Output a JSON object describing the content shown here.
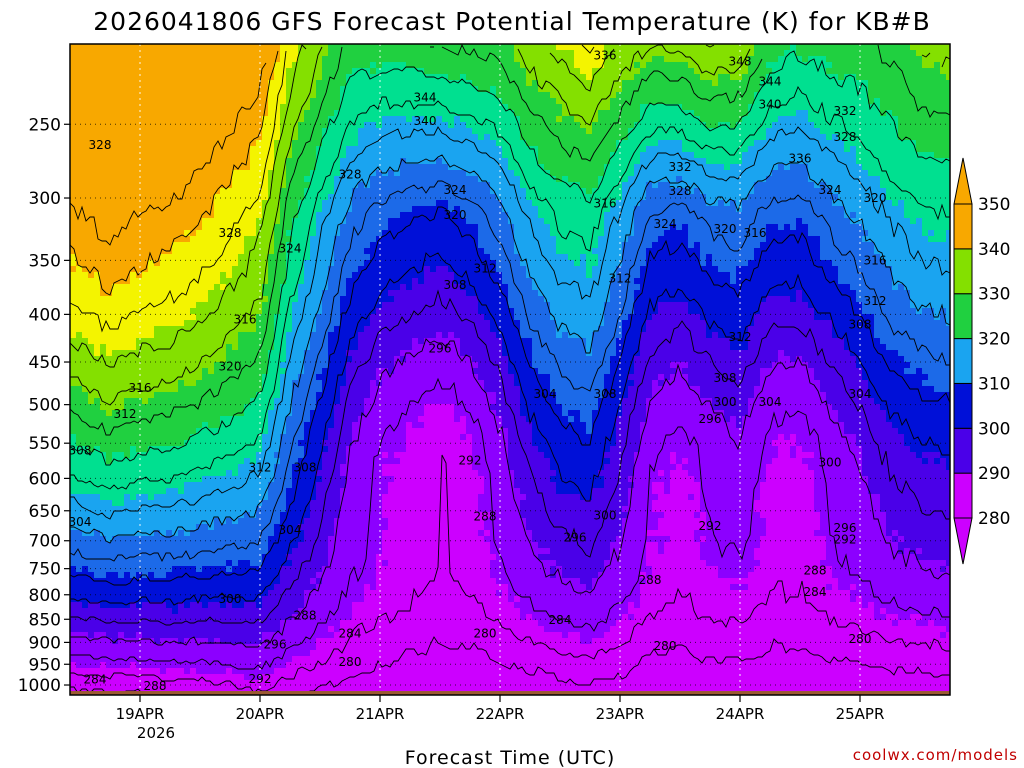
{
  "chart_data": {
    "type": "heatmap",
    "title": "2026041806 GFS Forecast Potential Temperature (K) for KB#B",
    "xlabel": "Forecast Time (UTC)",
    "ylabel": "",
    "credit": "coolwx.com/models",
    "y_axis": {
      "scale": "pressure-log",
      "inverted": true,
      "ticks": [
        250,
        300,
        350,
        400,
        450,
        500,
        550,
        600,
        650,
        700,
        750,
        800,
        850,
        900,
        950,
        1000
      ],
      "tick_labels": [
        "250",
        "300",
        "350",
        "400",
        "450",
        "500",
        "550",
        "600",
        "650",
        "700",
        "750",
        "800",
        "850",
        "900",
        "950",
        "1000"
      ],
      "range": [
        1025,
        205
      ]
    },
    "x_axis": {
      "range": [
        "2026-04-18T10:00",
        "2026-04-25T18:00"
      ],
      "ticks": [
        "2026-04-19T00:00",
        "2026-04-20T00:00",
        "2026-04-21T00:00",
        "2026-04-22T00:00",
        "2026-04-23T00:00",
        "2026-04-24T00:00",
        "2026-04-25T00:00"
      ],
      "tick_labels": [
        "19APR",
        "20APR",
        "21APR",
        "22APR",
        "23APR",
        "24APR",
        "25APR"
      ],
      "sub_label": "2026"
    },
    "grid": true,
    "colorbar": {
      "levels": [
        280,
        290,
        300,
        310,
        320,
        330,
        340,
        350
      ],
      "tick_labels": [
        "280",
        "290",
        "300",
        "310",
        "320",
        "330",
        "340",
        "350"
      ],
      "colors": [
        "#cc00ff",
        "#8c00ff",
        "#4a00e8",
        "#0010d8",
        "#1c6ae8",
        "#1aa4f0",
        "#00e090",
        "#20d040",
        "#84e000",
        "#f4f400",
        "#f8a800"
      ],
      "extend": "both"
    },
    "contour_interval": 4,
    "columns": [
      {
        "t": "2026-04-18T10:00",
        "theta_1000": 281,
        "lapse": 3.0,
        "trough": 0.0,
        "jet_theta": 330
      },
      {
        "t": "2026-04-18T18:00",
        "theta_1000": 282,
        "lapse": 3.1,
        "trough": 0.0,
        "jet_theta": 330
      },
      {
        "t": "2026-04-19T00:00",
        "theta_1000": 282,
        "lapse": 3.0,
        "trough": 0.0,
        "jet_theta": 330
      },
      {
        "t": "2026-04-19T06:00",
        "theta_1000": 283,
        "lapse": 2.9,
        "trough": 0.0,
        "jet_theta": 330
      },
      {
        "t": "2026-04-19T12:00",
        "theta_1000": 283,
        "lapse": 2.8,
        "trough": 0.0,
        "jet_theta": 330
      },
      {
        "t": "2026-04-19T18:00",
        "theta_1000": 284,
        "lapse": 2.6,
        "trough": 0.0,
        "jet_theta": 330
      },
      {
        "t": "2026-04-20T00:00",
        "theta_1000": 285,
        "lapse": 2.4,
        "trough": 0.0,
        "jet_theta": 331
      },
      {
        "t": "2026-04-20T06:00",
        "theta_1000": 283,
        "lapse": 2.0,
        "trough": 0.2,
        "jet_theta": 332
      },
      {
        "t": "2026-04-20T12:00",
        "theta_1000": 281,
        "lapse": 1.8,
        "trough": 0.45,
        "jet_theta": 333
      },
      {
        "t": "2026-04-20T18:00",
        "theta_1000": 279,
        "lapse": 1.6,
        "trough": 0.7,
        "jet_theta": 335
      },
      {
        "t": "2026-04-21T00:00",
        "theta_1000": 278,
        "lapse": 1.5,
        "trough": 0.85,
        "jet_theta": 338
      },
      {
        "t": "2026-04-21T06:00",
        "theta_1000": 277,
        "lapse": 1.5,
        "trough": 0.95,
        "jet_theta": 340
      },
      {
        "t": "2026-04-21T12:00",
        "theta_1000": 276,
        "lapse": 1.5,
        "trough": 1.0,
        "jet_theta": 342
      },
      {
        "t": "2026-04-21T18:00",
        "theta_1000": 276,
        "lapse": 1.6,
        "trough": 0.95,
        "jet_theta": 340
      },
      {
        "t": "2026-04-22T00:00",
        "theta_1000": 277,
        "lapse": 1.7,
        "trough": 0.75,
        "jet_theta": 337
      },
      {
        "t": "2026-04-22T06:00",
        "theta_1000": 278,
        "lapse": 1.9,
        "trough": 0.55,
        "jet_theta": 335
      },
      {
        "t": "2026-04-22T12:00",
        "theta_1000": 279,
        "lapse": 2.0,
        "trough": 0.4,
        "jet_theta": 334
      },
      {
        "t": "2026-04-22T18:00",
        "theta_1000": 280,
        "lapse": 2.0,
        "trough": 0.35,
        "jet_theta": 336
      },
      {
        "t": "2026-04-23T00:00",
        "theta_1000": 279,
        "lapse": 1.8,
        "trough": 0.55,
        "jet_theta": 338
      },
      {
        "t": "2026-04-23T06:00",
        "theta_1000": 277,
        "lapse": 1.6,
        "trough": 0.8,
        "jet_theta": 342
      },
      {
        "t": "2026-04-23T12:00",
        "theta_1000": 276,
        "lapse": 1.6,
        "trough": 0.9,
        "jet_theta": 344
      },
      {
        "t": "2026-04-23T18:00",
        "theta_1000": 277,
        "lapse": 1.7,
        "trough": 0.85,
        "jet_theta": 344
      },
      {
        "t": "2026-04-24T00:00",
        "theta_1000": 277,
        "lapse": 1.7,
        "trough": 0.7,
        "jet_theta": 342
      },
      {
        "t": "2026-04-24T06:00",
        "theta_1000": 276,
        "lapse": 1.6,
        "trough": 0.9,
        "jet_theta": 338
      },
      {
        "t": "2026-04-24T12:00",
        "theta_1000": 276,
        "lapse": 1.6,
        "trough": 0.95,
        "jet_theta": 336
      },
      {
        "t": "2026-04-24T18:00",
        "theta_1000": 277,
        "lapse": 1.7,
        "trough": 0.85,
        "jet_theta": 334
      },
      {
        "t": "2026-04-25T00:00",
        "theta_1000": 277,
        "lapse": 1.8,
        "trough": 0.7,
        "jet_theta": 332
      },
      {
        "t": "2026-04-25T06:00",
        "theta_1000": 278,
        "lapse": 1.9,
        "trough": 0.55,
        "jet_theta": 330
      },
      {
        "t": "2026-04-25T12:00",
        "theta_1000": 278,
        "lapse": 2.0,
        "trough": 0.5,
        "jet_theta": 330
      },
      {
        "t": "2026-04-25T18:00",
        "theta_1000": 279,
        "lapse": 2.0,
        "trough": 0.5,
        "jet_theta": 330
      }
    ],
    "annotations": [
      {
        "t": "2026-04-18T16:00",
        "p": 263,
        "text": "328"
      },
      {
        "t": "2026-04-19T18:00",
        "p": 327,
        "text": "328"
      },
      {
        "t": "2026-04-20T06:00",
        "p": 340,
        "text": "324"
      },
      {
        "t": "2026-04-20T18:00",
        "p": 283,
        "text": "328"
      },
      {
        "t": "2026-04-21T09:00",
        "p": 234,
        "text": "344"
      },
      {
        "t": "2026-04-21T09:00",
        "p": 248,
        "text": "340"
      },
      {
        "t": "2026-04-21T15:00",
        "p": 294,
        "text": "324"
      },
      {
        "t": "2026-04-21T15:00",
        "p": 313,
        "text": "320"
      },
      {
        "t": "2026-04-22T21:00",
        "p": 211,
        "text": "336"
      },
      {
        "t": "2026-04-22T21:00",
        "p": 304,
        "text": "316"
      },
      {
        "t": "2026-04-23T12:00",
        "p": 278,
        "text": "332"
      },
      {
        "t": "2026-04-23T12:00",
        "p": 295,
        "text": "328"
      },
      {
        "t": "2026-04-23T09:00",
        "p": 320,
        "text": "324"
      },
      {
        "t": "2026-04-24T00:00",
        "p": 214,
        "text": "348"
      },
      {
        "t": "2026-04-24T06:00",
        "p": 225,
        "text": "344"
      },
      {
        "t": "2026-04-24T06:00",
        "p": 238,
        "text": "340"
      },
      {
        "t": "2026-04-24T12:00",
        "p": 272,
        "text": "336"
      },
      {
        "t": "2026-04-24T21:00",
        "p": 242,
        "text": "332"
      },
      {
        "t": "2026-04-24T21:00",
        "p": 258,
        "text": "328"
      },
      {
        "t": "2026-04-24T18:00",
        "p": 294,
        "text": "324"
      },
      {
        "t": "2026-04-25T03:00",
        "p": 300,
        "text": "320"
      },
      {
        "t": "2026-04-23T21:00",
        "p": 324,
        "text": "320"
      },
      {
        "t": "2026-04-24T03:00",
        "p": 327,
        "text": "316"
      },
      {
        "t": "2026-04-25T03:00",
        "p": 350,
        "text": "316"
      },
      {
        "t": "2026-04-21T21:00",
        "p": 357,
        "text": "312"
      },
      {
        "t": "2026-04-21T15:00",
        "p": 372,
        "text": "308"
      },
      {
        "t": "2026-04-23T00:00",
        "p": 366,
        "text": "312"
      },
      {
        "t": "2026-04-25T03:00",
        "p": 387,
        "text": "312"
      },
      {
        "t": "2026-04-25T00:00",
        "p": 410,
        "text": "308"
      },
      {
        "t": "2026-04-24T00:00",
        "p": 423,
        "text": "312"
      },
      {
        "t": "2026-04-19T21:00",
        "p": 405,
        "text": "316"
      },
      {
        "t": "2026-04-19T18:00",
        "p": 455,
        "text": "320"
      },
      {
        "t": "2026-04-19T00:00",
        "p": 480,
        "text": "316"
      },
      {
        "t": "2026-04-18T21:00",
        "p": 512,
        "text": "312"
      },
      {
        "t": "2026-04-18T12:00",
        "p": 560,
        "text": "308"
      },
      {
        "t": "2026-04-20T00:00",
        "p": 584,
        "text": "312"
      },
      {
        "t": "2026-04-20T09:00",
        "p": 584,
        "text": "308"
      },
      {
        "t": "2026-04-21T12:00",
        "p": 435,
        "text": "296"
      },
      {
        "t": "2026-04-22T09:00",
        "p": 487,
        "text": "304"
      },
      {
        "t": "2026-04-22T21:00",
        "p": 487,
        "text": "308"
      },
      {
        "t": "2026-04-23T21:00",
        "p": 468,
        "text": "308"
      },
      {
        "t": "2026-04-23T21:00",
        "p": 497,
        "text": "300"
      },
      {
        "t": "2026-04-24T06:00",
        "p": 497,
        "text": "304"
      },
      {
        "t": "2026-04-23T18:00",
        "p": 518,
        "text": "296"
      },
      {
        "t": "2026-04-25T00:00",
        "p": 487,
        "text": "304"
      },
      {
        "t": "2026-04-24T18:00",
        "p": 577,
        "text": "300"
      },
      {
        "t": "2026-04-21T18:00",
        "p": 574,
        "text": "292"
      },
      {
        "t": "2026-04-22T21:00",
        "p": 658,
        "text": "300"
      },
      {
        "t": "2026-04-22T15:00",
        "p": 694,
        "text": "296"
      },
      {
        "t": "2026-04-23T18:00",
        "p": 675,
        "text": "292"
      },
      {
        "t": "2026-04-24T21:00",
        "p": 678,
        "text": "296"
      },
      {
        "t": "2026-04-24T21:00",
        "p": 698,
        "text": "292"
      },
      {
        "t": "2026-04-18T12:00",
        "p": 668,
        "text": "304"
      },
      {
        "t": "2026-04-20T06:00",
        "p": 682,
        "text": "304"
      },
      {
        "t": "2026-04-19T18:00",
        "p": 808,
        "text": "300"
      },
      {
        "t": "2026-04-21T21:00",
        "p": 659,
        "text": "288"
      },
      {
        "t": "2026-04-20T09:00",
        "p": 842,
        "text": "288"
      },
      {
        "t": "2026-04-20T18:00",
        "p": 880,
        "text": "284"
      },
      {
        "t": "2026-04-22T12:00",
        "p": 852,
        "text": "284"
      },
      {
        "t": "2026-04-23T06:00",
        "p": 771,
        "text": "288"
      },
      {
        "t": "2026-04-24T15:00",
        "p": 753,
        "text": "288"
      },
      {
        "t": "2026-04-24T15:00",
        "p": 795,
        "text": "284"
      },
      {
        "t": "2026-04-21T21:00",
        "p": 880,
        "text": "280"
      },
      {
        "t": "2026-04-23T09:00",
        "p": 908,
        "text": "280"
      },
      {
        "t": "2026-04-25T00:00",
        "p": 893,
        "text": "280"
      },
      {
        "t": "2026-04-20T18:00",
        "p": 945,
        "text": "280"
      },
      {
        "t": "2026-04-20T03:00",
        "p": 905,
        "text": "296"
      },
      {
        "t": "2026-04-20T00:00",
        "p": 985,
        "text": "292"
      },
      {
        "t": "2026-04-18T15:00",
        "p": 987,
        "text": "284"
      },
      {
        "t": "2026-04-19T03:00",
        "p": 1002,
        "text": "288"
      }
    ],
    "terrain": {
      "color": "#9b5a32",
      "surface_pressure": 1015
    }
  }
}
